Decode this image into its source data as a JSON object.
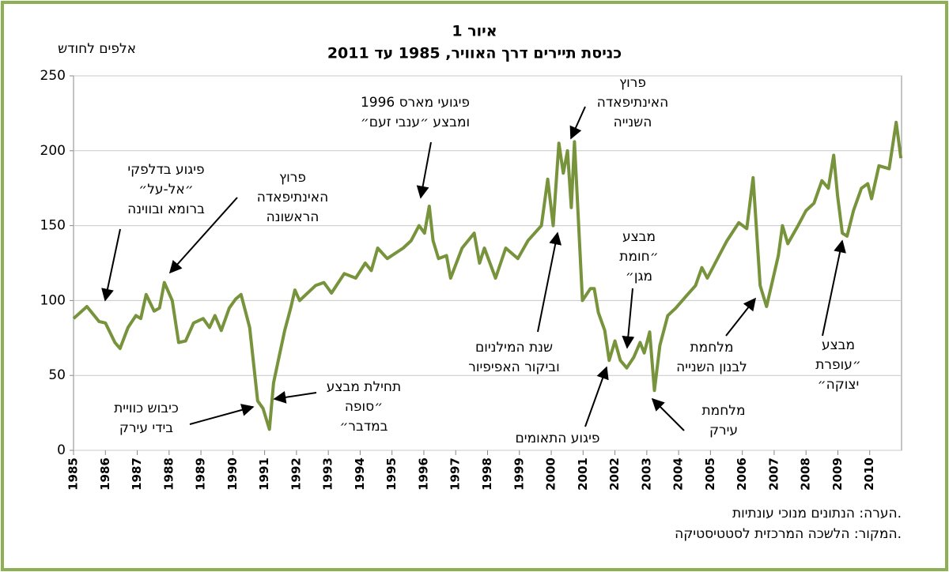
{
  "chart_data": {
    "type": "line",
    "title": "איור 1",
    "subtitle": "כניסת תיירים דרך האוויר, 1985 עד 2011",
    "y_label": "אלפים לחודש",
    "notes": [
      "הערה: הנתונים מנוכי עונתיות.",
      "המקור: הלשכה המרכזית לסטטיסטיקה."
    ],
    "color": "#77933c",
    "grid": true,
    "xlim": [
      1985,
      2011
    ],
    "xticks": [
      1985,
      1986,
      1987,
      1988,
      1989,
      1990,
      1991,
      1992,
      1993,
      1994,
      1995,
      1996,
      1997,
      1998,
      1999,
      2000,
      2001,
      2002,
      2003,
      2004,
      2005,
      2006,
      2007,
      2008,
      2009,
      2010
    ],
    "ylim": [
      0,
      250
    ],
    "yticks": [
      0,
      50,
      100,
      150,
      200,
      250
    ],
    "x": [
      1985.0,
      1985.42,
      1985.8,
      1986.0,
      1986.3,
      1986.46,
      1986.71,
      1986.96,
      1987.11,
      1987.28,
      1987.53,
      1987.7,
      1987.85,
      1988.1,
      1988.3,
      1988.52,
      1988.77,
      1989.07,
      1989.27,
      1989.44,
      1989.64,
      1989.89,
      1990.09,
      1990.26,
      1990.53,
      1990.78,
      1990.95,
      1991.15,
      1991.28,
      1991.43,
      1991.63,
      1991.82,
      1991.95,
      1992.1,
      1992.6,
      1992.86,
      1993.1,
      1993.5,
      1993.86,
      1994.16,
      1994.35,
      1994.55,
      1994.85,
      1995.35,
      1995.6,
      1995.85,
      1996.02,
      1996.17,
      1996.29,
      1996.46,
      1996.71,
      1996.84,
      1997.2,
      1997.58,
      1997.75,
      1997.9,
      1998.25,
      1998.57,
      1998.95,
      1999.27,
      1999.69,
      1999.89,
      2000.06,
      2000.24,
      2000.38,
      2000.51,
      2000.63,
      2000.73,
      2000.98,
      2001.23,
      2001.35,
      2001.48,
      2001.68,
      2001.82,
      2002.0,
      2002.17,
      2002.37,
      2002.59,
      2002.79,
      2002.92,
      2003.09,
      2003.24,
      2003.41,
      2003.66,
      2003.91,
      2004.28,
      2004.53,
      2004.73,
      2004.9,
      2005.27,
      2005.52,
      2005.89,
      2006.14,
      2006.34,
      2006.56,
      2006.76,
      2007.13,
      2007.26,
      2007.43,
      2007.75,
      2008.0,
      2008.25,
      2008.5,
      2008.7,
      2008.87,
      2008.99,
      2009.14,
      2009.29,
      2009.49,
      2009.74,
      2009.94,
      2010.06,
      2010.29,
      2010.61,
      2010.83,
      2010.98
    ],
    "values": [
      88,
      96,
      86,
      85,
      72,
      68,
      82,
      90,
      88,
      104,
      93,
      95,
      112,
      100,
      72,
      73,
      85,
      88,
      82,
      90,
      80,
      95,
      101,
      104,
      82,
      33,
      28,
      14,
      45,
      60,
      80,
      95,
      107,
      100,
      110,
      112,
      105,
      118,
      115,
      125,
      120,
      135,
      128,
      135,
      140,
      150,
      145,
      163,
      140,
      128,
      130,
      115,
      135,
      145,
      125,
      135,
      115,
      135,
      128,
      140,
      150,
      181,
      150,
      205,
      185,
      200,
      162,
      206,
      100,
      108,
      108,
      92,
      80,
      60,
      73,
      60,
      55,
      62,
      72,
      65,
      79,
      40,
      70,
      90,
      95,
      104,
      110,
      122,
      115,
      130,
      140,
      152,
      148,
      182,
      110,
      96,
      130,
      150,
      138,
      150,
      160,
      165,
      180,
      175,
      197,
      170,
      145,
      143,
      160,
      175,
      178,
      168,
      190,
      188,
      219,
      195
    ],
    "annotations": [
      [
        "פיגוע בדלפקי",
        "״אל-על״",
        "ברומא ובווינה"
      ],
      [
        "פרוץ",
        "האינתיפאדה",
        "הראשונה"
      ],
      [
        "פיגועי מארס 1996",
        "ומבצע ״ענבי זעם״"
      ],
      [
        "פרוץ",
        "האינתיפאדה",
        "השנייה"
      ],
      [
        "מבצע",
        "״חומת",
        "מגן״"
      ],
      [
        "כיבוש כוויית",
        "בידי עירק"
      ],
      [
        "תחילת מבצע",
        "״סופה",
        "במדבר״"
      ],
      [
        "שנת המילניום",
        "וביקור האפיפיור"
      ],
      [
        "פיגוע התאומים"
      ],
      [
        "מלחמת",
        "עירק"
      ],
      [
        "מלחמת",
        "לבנון השנייה"
      ],
      [
        "מבצע",
        "״עופרת",
        "יצוקה״"
      ]
    ]
  }
}
